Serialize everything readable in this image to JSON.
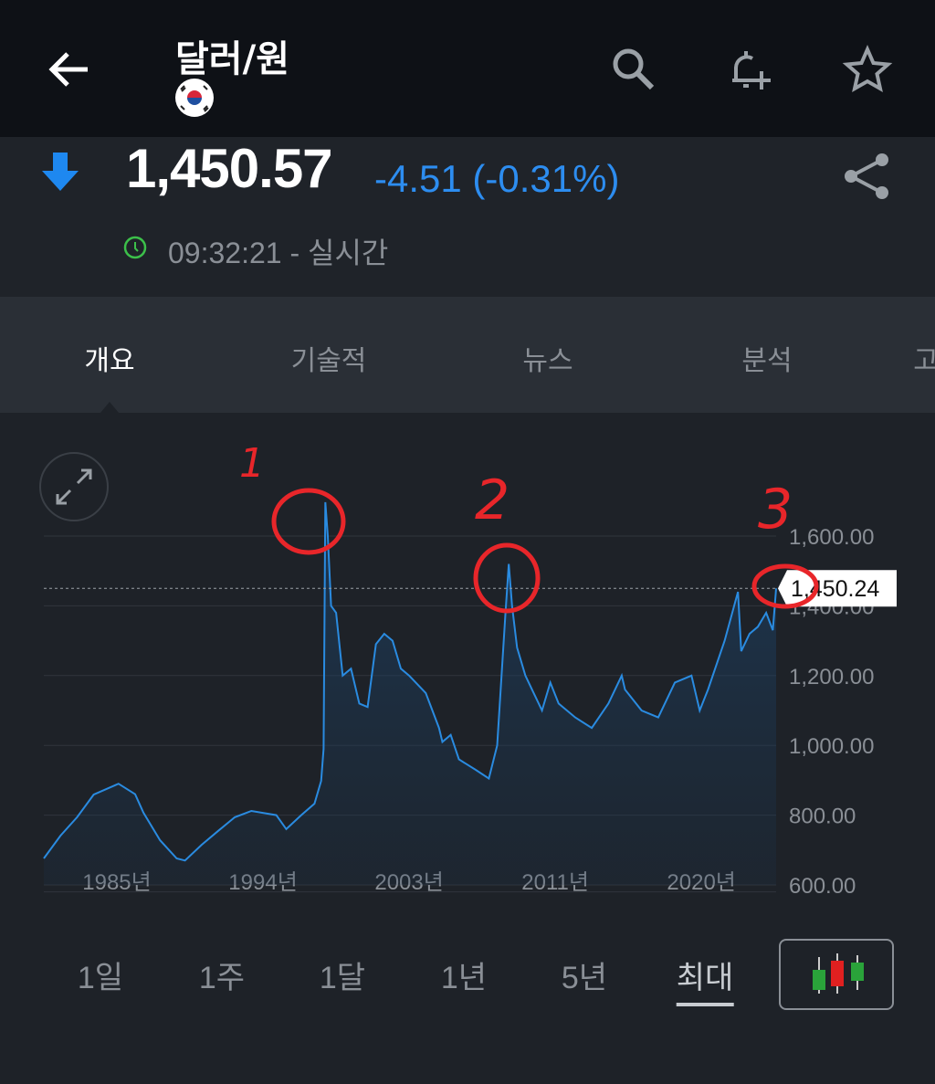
{
  "header": {
    "title": "달러/원",
    "back_icon": "arrow-left-icon",
    "flag_icon": "south-korea-flag-icon",
    "actions": [
      "search-icon",
      "bell-plus-icon",
      "star-icon"
    ]
  },
  "quote": {
    "price": "1,450.57",
    "change": "-4.51 (-0.31%)",
    "direction": "down",
    "time": "09:32:21 - 실시간",
    "down_color": "#2d8df0",
    "clock_color": "#3cc04a"
  },
  "tabs": [
    {
      "label": "개요",
      "active": true
    },
    {
      "label": "기술적"
    },
    {
      "label": "뉴스"
    },
    {
      "label": "분석"
    },
    {
      "label": "고"
    }
  ],
  "periods": [
    {
      "label": "1일"
    },
    {
      "label": "1주"
    },
    {
      "label": "1달"
    },
    {
      "label": "1년"
    },
    {
      "label": "5년"
    },
    {
      "label": "최대",
      "active": true
    }
  ],
  "annotations": {
    "labels": [
      "1",
      "2",
      "3"
    ],
    "color": "#e8262a"
  },
  "chart_data": {
    "type": "area",
    "x_tick_labels": [
      "1985년",
      "1994년",
      "2003년",
      "2011년",
      "2020년"
    ],
    "y_tick_labels": [
      "1,600.00",
      "1,400.00",
      "1,200.00",
      "1,000.00",
      "800.00",
      "600.00"
    ],
    "ylim": [
      600,
      1600
    ],
    "current_value_label": "1,450.24",
    "current_value": 1450.24,
    "line_color": "#2a8be0",
    "grid": true,
    "points": [
      [
        1981,
        676
      ],
      [
        1982,
        741
      ],
      [
        1983,
        794
      ],
      [
        1984,
        859
      ],
      [
        1985.5,
        890
      ],
      [
        1986.5,
        860
      ],
      [
        1987,
        807
      ],
      [
        1988,
        728
      ],
      [
        1989,
        676
      ],
      [
        1989.5,
        670
      ],
      [
        1990.5,
        715
      ],
      [
        1991.5,
        755
      ],
      [
        1992.5,
        794
      ],
      [
        1993.5,
        812
      ],
      [
        1995,
        800
      ],
      [
        1995.6,
        760
      ],
      [
        1996.5,
        800
      ],
      [
        1997.3,
        833
      ],
      [
        1997.7,
        898
      ],
      [
        1997.85,
        990
      ],
      [
        1997.95,
        1697
      ],
      [
        1998.1,
        1600
      ],
      [
        1998.3,
        1400
      ],
      [
        1998.6,
        1380
      ],
      [
        1999,
        1200
      ],
      [
        1999.5,
        1220
      ],
      [
        2000,
        1120
      ],
      [
        2000.5,
        1110
      ],
      [
        2001,
        1290
      ],
      [
        2001.5,
        1320
      ],
      [
        2002,
        1300
      ],
      [
        2002.5,
        1220
      ],
      [
        2003,
        1200
      ],
      [
        2004,
        1150
      ],
      [
        2004.8,
        1050
      ],
      [
        2005,
        1010
      ],
      [
        2005.5,
        1030
      ],
      [
        2006,
        960
      ],
      [
        2007,
        930
      ],
      [
        2007.8,
        905
      ],
      [
        2008.3,
        1000
      ],
      [
        2008.8,
        1380
      ],
      [
        2009.0,
        1520
      ],
      [
        2009.2,
        1400
      ],
      [
        2009.5,
        1280
      ],
      [
        2010,
        1200
      ],
      [
        2010.5,
        1150
      ],
      [
        2011,
        1100
      ],
      [
        2011.5,
        1180
      ],
      [
        2012,
        1120
      ],
      [
        2013,
        1080
      ],
      [
        2014,
        1050
      ],
      [
        2015,
        1120
      ],
      [
        2015.8,
        1200
      ],
      [
        2016,
        1160
      ],
      [
        2017,
        1100
      ],
      [
        2018,
        1080
      ],
      [
        2019,
        1180
      ],
      [
        2020,
        1200
      ],
      [
        2020.5,
        1100
      ],
      [
        2021,
        1160
      ],
      [
        2022,
        1300
      ],
      [
        2022.8,
        1440
      ],
      [
        2023,
        1270
      ],
      [
        2023.5,
        1320
      ],
      [
        2024,
        1340
      ],
      [
        2024.5,
        1380
      ],
      [
        2024.9,
        1330
      ],
      [
        2025.1,
        1450
      ]
    ]
  }
}
